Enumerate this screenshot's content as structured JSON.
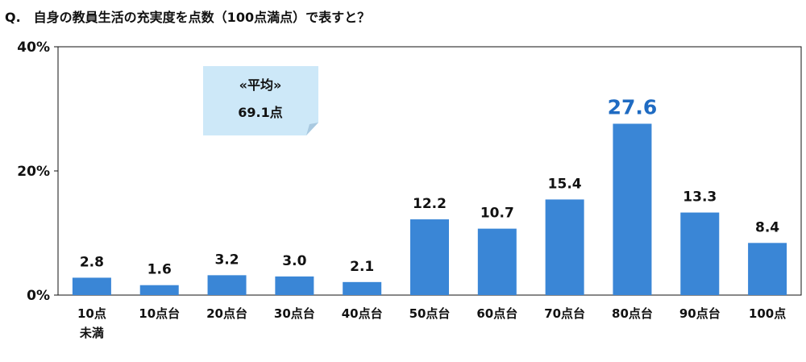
{
  "title": "Q.　自身の教員生活の充実度を点数（100点満点）で表すと？",
  "callout": {
    "line1": "«平均»",
    "line2": "69.1点"
  },
  "colors": {
    "bar": "#3a86d6",
    "highlight": "#1f6bc2",
    "callout_fill": "#cde8f8"
  },
  "chart_data": {
    "type": "bar",
    "title": "Q.　自身の教員生活の充実度を点数（100点満点）で表すと？",
    "categories": [
      "10点\n未満",
      "10点台",
      "20点台",
      "30点台",
      "40点台",
      "50点台",
      "60点台",
      "70点台",
      "80点台",
      "90点台",
      "100点"
    ],
    "values": [
      2.8,
      1.6,
      3.2,
      3.0,
      2.1,
      12.2,
      10.7,
      15.4,
      27.6,
      13.3,
      8.4
    ],
    "value_labels": [
      "2.8",
      "1.6",
      "3.2",
      "3.0",
      "2.1",
      "12.2",
      "10.7",
      "15.4",
      "27.6",
      "13.3",
      "8.4"
    ],
    "highlight_index": 8,
    "yticks": [
      "0%",
      "20%",
      "40%"
    ],
    "ytick_values": [
      0,
      20,
      40
    ],
    "ylim": [
      0,
      40
    ],
    "grid": false,
    "xlabel": "",
    "ylabel": ""
  }
}
